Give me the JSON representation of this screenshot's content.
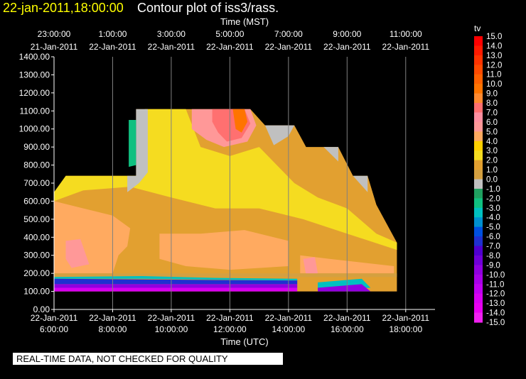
{
  "header": {
    "date_time": "22-jan-2011,18:00:00",
    "plot_title": "Contour plot of iss3/rass."
  },
  "quality_notice": "REAL-TIME DATA, NOT CHECKED FOR QUALITY",
  "colors": {
    "background": "#000000",
    "title_date": "#ffff00",
    "grid": "#808080"
  },
  "chart_data": {
    "type": "heatmap",
    "xlabel_bottom": "Time (UTC)",
    "xlabel_top": "Time (MST)",
    "ylabel": "",
    "ylim": [
      0,
      1400
    ],
    "x_range_hours_utc": [
      "22-Jan-2011 6:00:00",
      "22-Jan-2011 19:00:00"
    ],
    "grid": true,
    "y_ticks": [
      "0.00",
      "100.00",
      "200.00",
      "300.00",
      "400.00",
      "500.00",
      "600.00",
      "700.00",
      "800.00",
      "900.00",
      "1000.00",
      "1100.00",
      "1200.00",
      "1300.00",
      "1400.00"
    ],
    "x_ticks_bottom": [
      {
        "date": "22-Jan-2011",
        "time": "6:00:00"
      },
      {
        "date": "22-Jan-2011",
        "time": "8:00:00"
      },
      {
        "date": "22-Jan-2011",
        "time": "10:00:00"
      },
      {
        "date": "22-Jan-2011",
        "time": "12:00:00"
      },
      {
        "date": "22-Jan-2011",
        "time": "14:00:00"
      },
      {
        "date": "22-Jan-2011",
        "time": "16:00:00"
      },
      {
        "date": "22-Jan-2011",
        "time": "18:00:00"
      }
    ],
    "x_ticks_top": [
      {
        "time": "23:00:00",
        "date": "21-Jan-2011"
      },
      {
        "time": "1:00:00",
        "date": "22-Jan-2011"
      },
      {
        "time": "3:00:00",
        "date": "22-Jan-2011"
      },
      {
        "time": "5:00:00",
        "date": "22-Jan-2011"
      },
      {
        "time": "7:00:00",
        "date": "22-Jan-2011"
      },
      {
        "time": "9:00:00",
        "date": "22-Jan-2011"
      },
      {
        "time": "11:00:00",
        "date": "22-Jan-2011"
      }
    ],
    "colorbar": {
      "label": "tv",
      "levels": [
        "15.0",
        "14.0",
        "13.0",
        "12.0",
        "11.0",
        "10.0",
        "9.0",
        "8.0",
        "7.0",
        "6.0",
        "5.0",
        "4.0",
        "3.0",
        "2.0",
        "1.0",
        "0.0",
        "-1.0",
        "-2.0",
        "-3.0",
        "-4.0",
        "-5.0",
        "-6.0",
        "-7.0",
        "-8.0",
        "-9.0",
        "-10.0",
        "-11.0",
        "-12.0",
        "-13.0",
        "-14.0",
        "-15.0"
      ],
      "colors": [
        "#ff0000",
        "#ff1a00",
        "#ff3300",
        "#ff4a00",
        "#ff6000",
        "#ff7400",
        "#ff8a30",
        "#ff7070",
        "#ff8fa0",
        "#ff9898",
        "#ffaa60",
        "#ffd000",
        "#f5dc20",
        "#e2a030",
        "#d4a040",
        "#c0c0c0",
        "#20a060",
        "#10c080",
        "#00c0c0",
        "#0090d0",
        "#0050e0",
        "#2030d0",
        "#5000d0",
        "#7000d8",
        "#9000e0",
        "#a800e8",
        "#c000f0",
        "#d800f0",
        "#e800f0",
        "#f020f0"
      ]
    },
    "regions": [
      {
        "label": "data envelope",
        "level": "2.0",
        "points": [
          [
            6.0,
            100
          ],
          [
            6.0,
            650
          ],
          [
            6.4,
            650
          ],
          [
            6.4,
            740
          ],
          [
            8.8,
            740
          ],
          [
            8.8,
            1110
          ],
          [
            12.7,
            1110
          ],
          [
            13.2,
            1020
          ],
          [
            14.2,
            1020
          ],
          [
            14.6,
            900
          ],
          [
            15.7,
            900
          ],
          [
            16.2,
            740
          ],
          [
            16.7,
            740
          ],
          [
            17.0,
            580
          ],
          [
            17.7,
            370
          ],
          [
            17.7,
            100
          ]
        ]
      },
      {
        "label": "upper band 3.0",
        "level": "3.0",
        "points": [
          [
            6.0,
            650
          ],
          [
            6.4,
            740
          ],
          [
            8.8,
            740
          ],
          [
            9.1,
            1110
          ],
          [
            10.5,
            1110
          ],
          [
            11.0,
            900
          ],
          [
            12.0,
            850
          ],
          [
            13.0,
            900
          ],
          [
            14.2,
            700
          ],
          [
            15.0,
            620
          ],
          [
            16.0,
            560
          ],
          [
            17.0,
            420
          ],
          [
            17.7,
            370
          ],
          [
            17.7,
            330
          ],
          [
            16.0,
            420
          ],
          [
            14.5,
            500
          ],
          [
            13.0,
            560
          ],
          [
            11.5,
            560
          ],
          [
            10.0,
            620
          ],
          [
            8.6,
            680
          ],
          [
            7.0,
            660
          ],
          [
            6.0,
            600
          ]
        ]
      },
      {
        "label": "peach lower left",
        "level": "5.0",
        "points": [
          [
            6.0,
            600
          ],
          [
            7.0,
            560
          ],
          [
            8.0,
            520
          ],
          [
            8.6,
            450
          ],
          [
            8.5,
            350
          ],
          [
            8.2,
            300
          ],
          [
            8.0,
            200
          ],
          [
            6.0,
            200
          ]
        ]
      },
      {
        "label": "pink pocket left",
        "level": "6.0",
        "points": [
          [
            6.4,
            380
          ],
          [
            6.9,
            390
          ],
          [
            7.2,
            250
          ],
          [
            6.6,
            230
          ],
          [
            6.4,
            280
          ]
        ]
      },
      {
        "label": "peach middle",
        "level": "5.0",
        "points": [
          [
            9.6,
            420
          ],
          [
            11.0,
            420
          ],
          [
            12.5,
            440
          ],
          [
            14.0,
            380
          ],
          [
            14.0,
            240
          ],
          [
            12.0,
            220
          ],
          [
            10.5,
            240
          ],
          [
            9.6,
            280
          ]
        ]
      },
      {
        "label": "peach right",
        "level": "5.0",
        "points": [
          [
            14.4,
            300
          ],
          [
            15.4,
            280
          ],
          [
            16.5,
            260
          ],
          [
            17.6,
            240
          ],
          [
            17.6,
            200
          ],
          [
            14.4,
            200
          ]
        ]
      },
      {
        "label": "pink pocket right",
        "level": "6.0",
        "points": [
          [
            14.5,
            280
          ],
          [
            14.9,
            290
          ],
          [
            15.0,
            200
          ],
          [
            14.6,
            190
          ]
        ]
      },
      {
        "label": "warm top",
        "level": "6.0",
        "points": [
          [
            10.7,
            1110
          ],
          [
            12.7,
            1110
          ],
          [
            12.9,
            1020
          ],
          [
            12.6,
            930
          ],
          [
            11.8,
            900
          ],
          [
            11.2,
            940
          ],
          [
            10.7,
            1000
          ]
        ]
      },
      {
        "label": "hot core",
        "level": "8.0",
        "points": [
          [
            11.4,
            1110
          ],
          [
            12.5,
            1110
          ],
          [
            12.7,
            1030
          ],
          [
            12.4,
            950
          ],
          [
            11.9,
            930
          ],
          [
            11.6,
            980
          ],
          [
            11.4,
            1040
          ]
        ]
      },
      {
        "label": "hottest",
        "level": "10.0",
        "points": [
          [
            12.1,
            1110
          ],
          [
            12.5,
            1110
          ],
          [
            12.6,
            1040
          ],
          [
            12.4,
            980
          ],
          [
            12.2,
            1000
          ]
        ]
      },
      {
        "label": "grey upper mid",
        "level": "0.0",
        "points": [
          [
            13.2,
            1020
          ],
          [
            14.2,
            1020
          ],
          [
            14.0,
            960
          ],
          [
            13.5,
            910
          ]
        ]
      },
      {
        "label": "grey upper right",
        "level": "0.0",
        "points": [
          [
            15.2,
            900
          ],
          [
            15.7,
            900
          ],
          [
            15.7,
            820
          ]
        ]
      },
      {
        "label": "grey far right",
        "level": "0.0",
        "points": [
          [
            16.2,
            740
          ],
          [
            16.7,
            740
          ],
          [
            16.7,
            650
          ]
        ]
      },
      {
        "label": "grey upper left",
        "level": "0.0",
        "points": [
          [
            8.8,
            1110
          ],
          [
            9.2,
            1110
          ],
          [
            9.2,
            760
          ],
          [
            8.9,
            700
          ],
          [
            8.5,
            650
          ],
          [
            8.5,
            740
          ],
          [
            8.8,
            740
          ]
        ]
      },
      {
        "label": "cool pocket upper left",
        "level": "-2.0",
        "points": [
          [
            8.55,
            1050
          ],
          [
            8.8,
            1050
          ],
          [
            8.8,
            800
          ],
          [
            8.55,
            790
          ]
        ]
      },
      {
        "label": "near-surface 1.0",
        "level": "1.0",
        "points": [
          [
            6.0,
            200
          ],
          [
            17.7,
            200
          ],
          [
            17.7,
            180
          ],
          [
            6.0,
            180
          ]
        ]
      },
      {
        "label": "near-surface -3.0",
        "level": "-3.0",
        "points": [
          [
            6.0,
            180
          ],
          [
            9.0,
            185
          ],
          [
            11.5,
            175
          ],
          [
            14.3,
            170
          ],
          [
            14.3,
            160
          ],
          [
            11.5,
            165
          ],
          [
            9.0,
            170
          ],
          [
            6.0,
            170
          ]
        ]
      },
      {
        "label": "near-surface -6.0",
        "level": "-6.0",
        "points": [
          [
            6.0,
            170
          ],
          [
            14.3,
            160
          ],
          [
            14.3,
            140
          ],
          [
            6.0,
            140
          ]
        ]
      },
      {
        "label": "near-surface -9.0",
        "level": "-9.0",
        "points": [
          [
            6.0,
            140
          ],
          [
            14.3,
            140
          ],
          [
            14.3,
            120
          ],
          [
            6.0,
            120
          ]
        ]
      },
      {
        "label": "near-surface -12.0",
        "level": "-12.0",
        "points": [
          [
            6.0,
            120
          ],
          [
            14.3,
            120
          ],
          [
            14.3,
            100
          ],
          [
            6.0,
            100
          ]
        ]
      },
      {
        "label": "surface gap right",
        "level": "-3.0",
        "points": [
          [
            15.0,
            150
          ],
          [
            16.5,
            170
          ],
          [
            16.8,
            120
          ],
          [
            15.0,
            110
          ]
        ]
      },
      {
        "label": "surface gap right core",
        "level": "-9.0",
        "points": [
          [
            15.0,
            120
          ],
          [
            16.5,
            140
          ],
          [
            16.8,
            100
          ],
          [
            15.0,
            100
          ]
        ]
      }
    ]
  }
}
